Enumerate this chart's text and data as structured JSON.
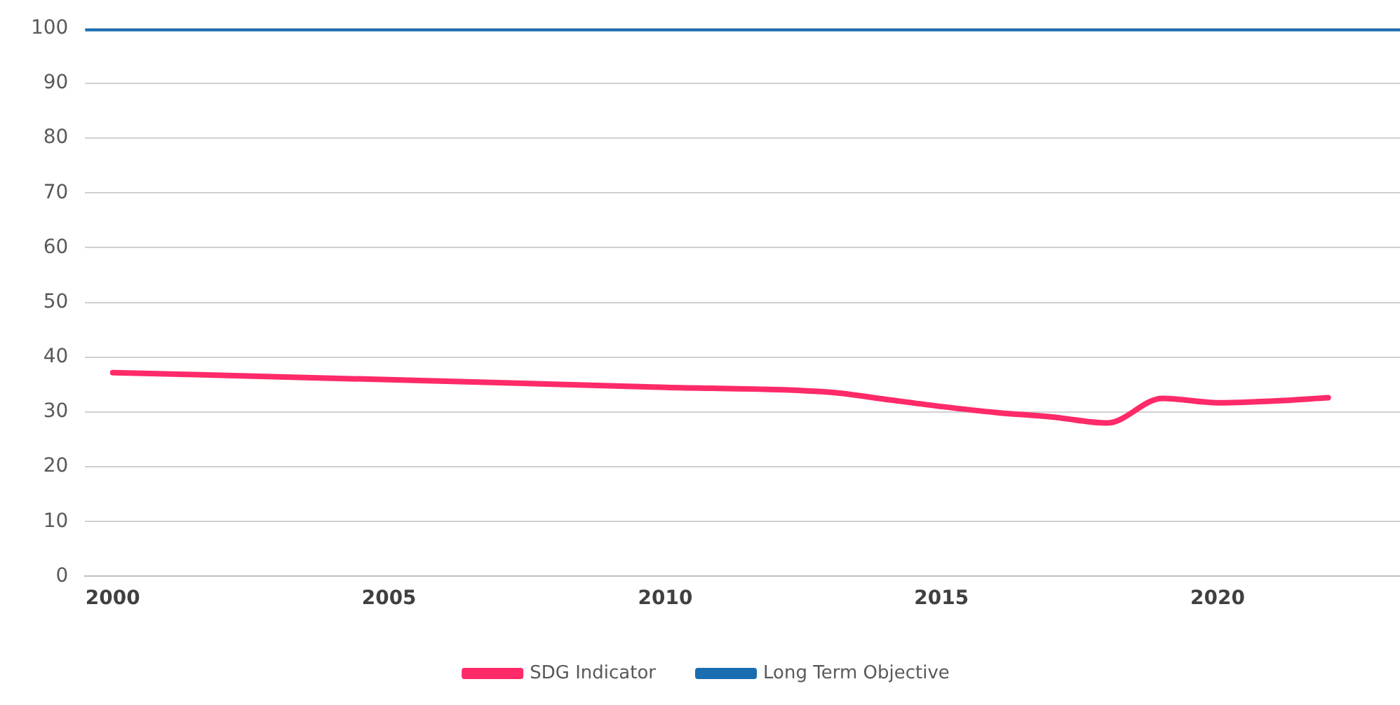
{
  "chart_data": {
    "type": "line",
    "x": [
      2000,
      2005,
      2010,
      2013,
      2014,
      2015,
      2016,
      2017,
      2018,
      2019,
      2020,
      2021,
      2022
    ],
    "series": [
      {
        "name": "SDG Indicator",
        "color": "#ff2a68",
        "values": [
          37.2,
          35.9,
          34.5,
          33.6,
          32.3,
          31.0,
          29.9,
          29.1,
          28.0,
          32.5,
          31.7,
          32.0,
          32.6
        ]
      },
      {
        "name": "Long Term Objective",
        "color": "#1a6db0",
        "x": [
          1999.5,
          2023.3
        ],
        "values": [
          100,
          100
        ]
      }
    ],
    "xlim": [
      1999.5,
      2023.3
    ],
    "xticks": [
      2000,
      2005,
      2010,
      2015,
      2020
    ],
    "ylim": [
      0,
      100
    ],
    "yticks": [
      0,
      10,
      20,
      30,
      40,
      50,
      60,
      70,
      80,
      90,
      100
    ],
    "grid": "y",
    "legend": "bottom",
    "marker": "none",
    "line_style": "solid"
  }
}
